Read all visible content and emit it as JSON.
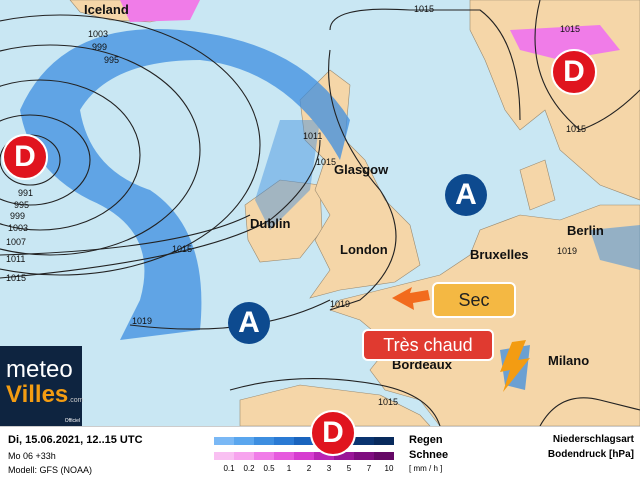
{
  "map": {
    "colors": {
      "sea": "#c9e7f3",
      "land": "#f5d6a8",
      "rain": "#3d8ee0",
      "snow": "#f07ce8",
      "low": "#e0141e",
      "high": "#0d4a8f"
    },
    "cities": [
      {
        "name": "Iceland"
      },
      {
        "name": "Glasgow"
      },
      {
        "name": "Dublin"
      },
      {
        "name": "London"
      },
      {
        "name": "Bruxelles"
      },
      {
        "name": "Berlin"
      },
      {
        "name": "Bordeaux"
      },
      {
        "name": "Milano"
      }
    ],
    "isobars": [
      "1003",
      "999",
      "995",
      "991",
      "995",
      "999",
      "1003",
      "1007",
      "1011",
      "1015",
      "1011",
      "1015",
      "1015",
      "1019",
      "1015",
      "1015",
      "1015",
      "1019",
      "1019",
      "1015"
    ],
    "systems": {
      "low_left": "D",
      "low_right": "D",
      "low_bottom": "D",
      "high_center": "A",
      "high_right": "A"
    },
    "labels": {
      "dry": "Sec",
      "hot": "Très chaud"
    }
  },
  "logo": {
    "text1": "meteo",
    "text2": "Villes",
    "suffix": ".com",
    "badge": "Officiel"
  },
  "legend": {
    "date": "Di, 15.06.2021, 12..15 UTC",
    "run": "Mo 06 +33h",
    "model": "Modell: GFS (NOAA)",
    "rain_label": "Regen",
    "snow_label": "Schnee",
    "unit": "[ mm / h ]",
    "ticks": [
      "0.1",
      "0.2",
      "0.5",
      "1",
      "2",
      "3",
      "5",
      "7",
      "10"
    ],
    "rain_colors": [
      "#7ab8f5",
      "#5aa6ee",
      "#3d8ee0",
      "#2a7ad4",
      "#1a64be",
      "#124f9f",
      "#0c3f84",
      "#0a3470",
      "#082a5c"
    ],
    "snow_colors": [
      "#f9c0f2",
      "#f7a4ee",
      "#f07ce8",
      "#e65ade",
      "#d63cd0",
      "#b925b5",
      "#9a1598",
      "#7e0c7f",
      "#650866"
    ],
    "type_title": "Niederschlagsart",
    "pressure_title": "Bodendruck [hPa]"
  }
}
